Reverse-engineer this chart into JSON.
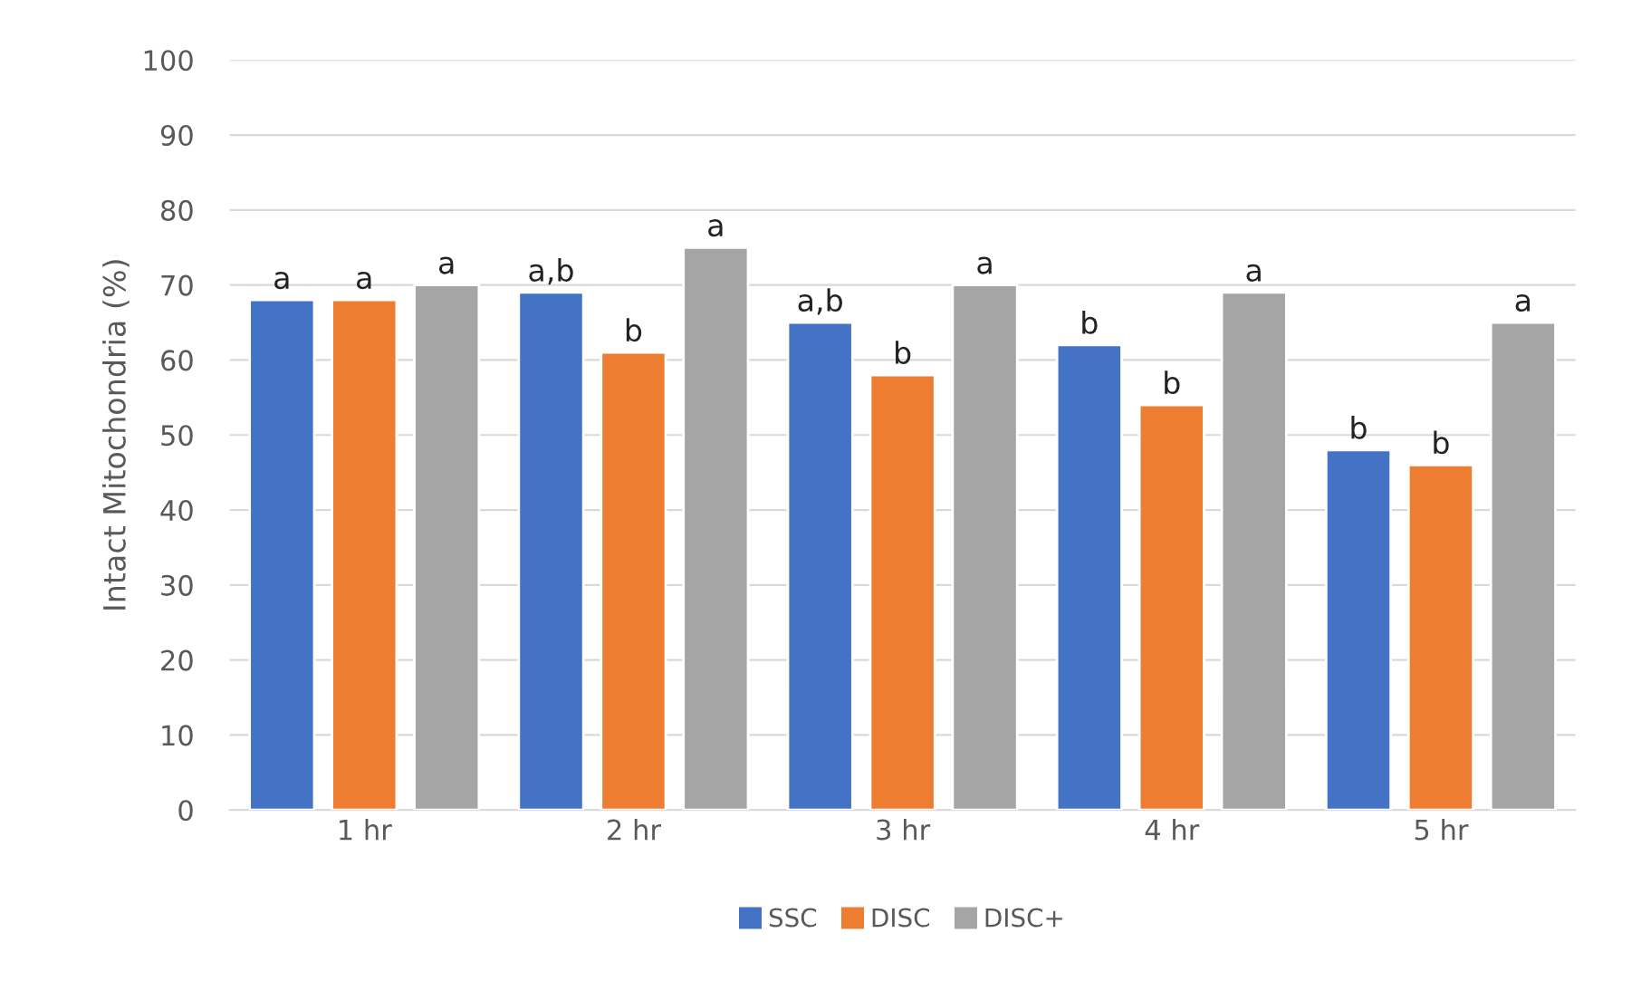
{
  "chart_data": {
    "type": "bar",
    "ylabel": "Intact Mitochondria (%)",
    "categories": [
      "1 hr",
      "2 hr",
      "3 hr",
      "4 hr",
      "5 hr"
    ],
    "series": [
      {
        "name": "SSC",
        "color": "#4472c4",
        "values": [
          68,
          69,
          65,
          62,
          48
        ],
        "value_labels": [
          "a",
          "a,b",
          "a,b",
          "b",
          "b"
        ]
      },
      {
        "name": "DISC",
        "color": "#ed7d31",
        "values": [
          68,
          61,
          58,
          54,
          46
        ],
        "value_labels": [
          "a",
          "b",
          "b",
          "b",
          "b"
        ]
      },
      {
        "name": "DISC+",
        "color": "#a5a5a5",
        "values": [
          70,
          75,
          70,
          69,
          65
        ],
        "value_labels": [
          "a",
          "a",
          "a",
          "a",
          "a"
        ]
      }
    ],
    "ylim": [
      0,
      100
    ],
    "yticks": [
      0,
      10,
      20,
      30,
      40,
      50,
      60,
      70,
      80,
      90,
      100
    ],
    "grid": "y",
    "legend": "bottom"
  }
}
